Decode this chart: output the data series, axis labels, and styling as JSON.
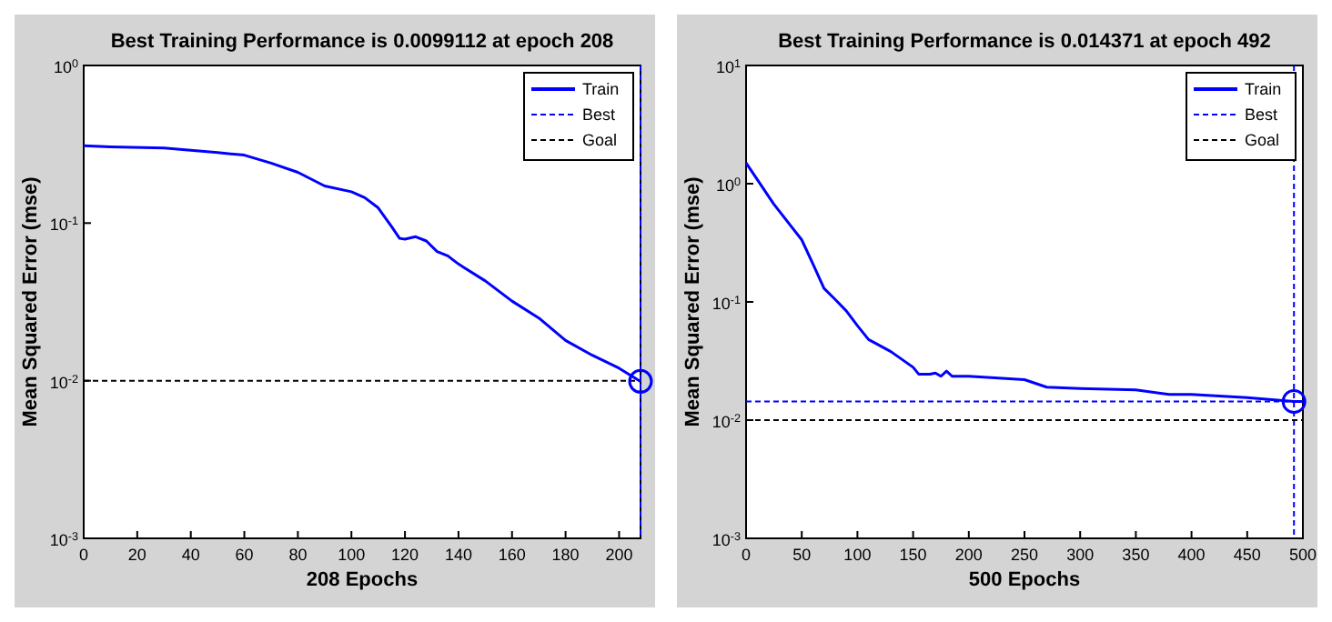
{
  "chart_data": [
    {
      "type": "line",
      "title": "Best Training Performance is 0.0099112 at epoch 208",
      "xlabel": "208 Epochs",
      "ylabel": "Mean Squared Error  (mse)",
      "log": "y",
      "legend": "top right",
      "xlim": [
        0,
        208
      ],
      "xticks": [
        0,
        20,
        40,
        60,
        80,
        100,
        120,
        140,
        160,
        180,
        200
      ],
      "ylim": [
        0.001,
        1
      ],
      "yticks": [
        {
          "value": 0.001,
          "label": "10$^{-3}$"
        },
        {
          "value": 0.01,
          "label": "10$^{-2}$"
        },
        {
          "value": 0.1,
          "label": "10$^{-1}$"
        },
        {
          "value": 1,
          "label": "10$^{0}$"
        }
      ],
      "series": [
        {
          "name": "Train",
          "color": "#0000ff",
          "x": [
            0,
            10,
            30,
            40,
            50,
            60,
            70,
            80,
            90,
            100,
            105,
            110,
            115,
            118,
            120,
            124,
            128,
            132,
            136,
            140,
            150,
            160,
            170,
            180,
            190,
            200,
            208
          ],
          "values": [
            0.31,
            0.305,
            0.3,
            0.29,
            0.28,
            0.27,
            0.24,
            0.21,
            0.172,
            0.158,
            0.145,
            0.125,
            0.095,
            0.08,
            0.079,
            0.082,
            0.077,
            0.066,
            0.062,
            0.055,
            0.043,
            0.032,
            0.025,
            0.018,
            0.0145,
            0.012,
            0.0099
          ]
        },
        {
          "type": "scatter",
          "marker": "circle",
          "color": "#0000ff",
          "x": [
            208
          ],
          "values": [
            0.0099112
          ]
        }
      ],
      "ref_lines": [
        {
          "axis": "x",
          "value": 208,
          "label": "Best",
          "color": "#0000ff",
          "line_style": "dashed"
        },
        {
          "axis": "y",
          "value": 0.01,
          "label": "Goal",
          "color": "#000000",
          "line_style": "dashed"
        }
      ]
    },
    {
      "type": "line",
      "title": "Best Training Performance is 0.014371 at epoch 492",
      "xlabel": "500 Epochs",
      "ylabel": "Mean Squared Error  (mse)",
      "log": "y",
      "legend": "top right",
      "xlim": [
        0,
        500
      ],
      "xticks": [
        0,
        50,
        100,
        150,
        200,
        250,
        300,
        350,
        400,
        450,
        500
      ],
      "ylim": [
        0.001,
        10
      ],
      "yticks": [
        {
          "value": 0.001,
          "label": "10$^{-3}$"
        },
        {
          "value": 0.01,
          "label": "10$^{-2}$"
        },
        {
          "value": 0.1,
          "label": "10$^{-1}$"
        },
        {
          "value": 1,
          "label": "10$^{0}$"
        },
        {
          "value": 10,
          "label": "10$^{1}$"
        }
      ],
      "series": [
        {
          "name": "Train",
          "color": "#0000ff",
          "x": [
            0,
            25,
            50,
            60,
            70,
            80,
            90,
            100,
            110,
            130,
            150,
            155,
            165,
            170,
            175,
            180,
            185,
            200,
            250,
            270,
            300,
            350,
            380,
            400,
            450,
            492,
            500
          ],
          "values": [
            1.5,
            0.67,
            0.335,
            0.21,
            0.13,
            0.105,
            0.084,
            0.063,
            0.048,
            0.038,
            0.028,
            0.0245,
            0.0245,
            0.025,
            0.0235,
            0.026,
            0.0235,
            0.0235,
            0.022,
            0.019,
            0.0185,
            0.018,
            0.0165,
            0.0165,
            0.0155,
            0.014371,
            0.0144
          ]
        },
        {
          "type": "scatter",
          "marker": "circle",
          "color": "#0000ff",
          "x": [
            492
          ],
          "values": [
            0.014371
          ]
        }
      ],
      "ref_lines": [
        {
          "axis": "x",
          "value": 492,
          "label": "Best",
          "color": "#0000ff",
          "line_style": "dashed"
        },
        {
          "axis": "y",
          "value": 0.014371,
          "label": null,
          "color": "#0000ff",
          "line_style": "dashed"
        },
        {
          "axis": "y",
          "value": 0.01,
          "label": "Goal",
          "color": "#000000",
          "line_style": "dashed"
        }
      ]
    }
  ]
}
